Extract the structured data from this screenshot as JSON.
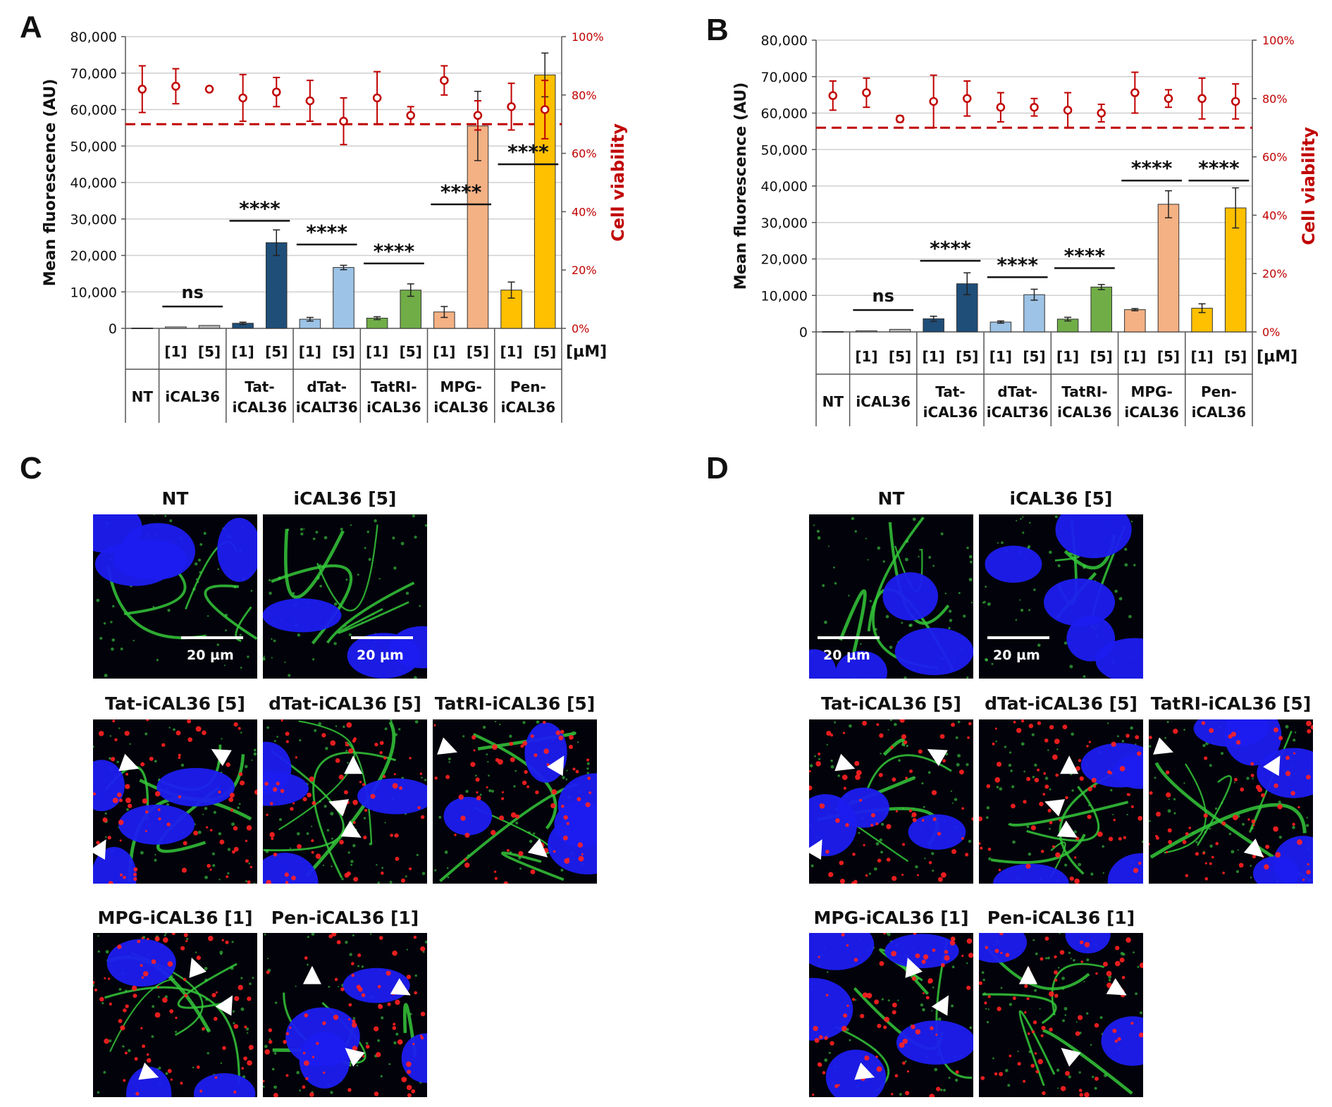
{
  "panels": {
    "A": "A",
    "B": "B",
    "C": "C",
    "D": "D"
  },
  "colors": {
    "NT": "#7f7f7f",
    "iCAL36": "#b7b7b7",
    "Tat": "#1f4e79",
    "dTat": "#9dc3e6",
    "TatRI": "#70ad47",
    "MPG": "#f4b183",
    "Pen": "#ffc000",
    "viability": "#c00000"
  },
  "chart_data": [
    {
      "type": "bar",
      "panel": "A",
      "ylabel": "Mean fluorescence (AU)",
      "y2label": "Cell viability",
      "ylim": [
        0,
        80000
      ],
      "yticks": [
        "0",
        "10,000",
        "20,000",
        "30,000",
        "40,000",
        "50,000",
        "60,000",
        "70,000",
        "80,000"
      ],
      "y2lim": [
        0,
        100
      ],
      "y2ticks": [
        "0%",
        "20%",
        "40%",
        "60%",
        "80%",
        "100%"
      ],
      "unit_label": "[µM]",
      "threshold_pct": 70,
      "groups": [
        {
          "name": "NT",
          "lines": [
            "NT"
          ],
          "bars": [
            {
              "conc": "",
              "value": 100,
              "err": 0,
              "via": 82,
              "via_err": 8,
              "color": "NT"
            }
          ]
        },
        {
          "name": "iCAL36",
          "lines": [
            "iCAL36"
          ],
          "bars": [
            {
              "conc": "[1]",
              "value": 400,
              "err": 0,
              "via": 83,
              "via_err": 6,
              "color": "iCAL36"
            },
            {
              "conc": "[5]",
              "value": 800,
              "err": 0,
              "via": 82,
              "via_err": 0,
              "color": "iCAL36"
            }
          ]
        },
        {
          "name": "Tat-iCAL36",
          "lines": [
            "Tat-",
            "iCAL36"
          ],
          "bars": [
            {
              "conc": "[1]",
              "value": 1400,
              "err": 300,
              "via": 79,
              "via_err": 8,
              "color": "Tat"
            },
            {
              "conc": "[5]",
              "value": 23500,
              "err": 3500,
              "via": 81,
              "via_err": 5,
              "color": "Tat"
            }
          ]
        },
        {
          "name": "dTat-iCALT36",
          "lines": [
            "dTat-",
            "iCALT36"
          ],
          "bars": [
            {
              "conc": "[1]",
              "value": 2500,
              "err": 500,
              "via": 78,
              "via_err": 7,
              "color": "dTat"
            },
            {
              "conc": "[5]",
              "value": 16700,
              "err": 600,
              "via": 71,
              "via_err": 8,
              "color": "dTat"
            }
          ]
        },
        {
          "name": "TatRI-iCAL36",
          "lines": [
            "TatRI-",
            "iCAL36"
          ],
          "bars": [
            {
              "conc": "[1]",
              "value": 2800,
              "err": 400,
              "via": 79,
              "via_err": 9,
              "color": "TatRI"
            },
            {
              "conc": "[5]",
              "value": 10500,
              "err": 1700,
              "via": 73,
              "via_err": 3,
              "color": "TatRI"
            }
          ]
        },
        {
          "name": "MPG-iCAL36",
          "lines": [
            "MPG-",
            "iCAL36"
          ],
          "bars": [
            {
              "conc": "[1]",
              "value": 4500,
              "err": 1500,
              "via": 85,
              "via_err": 5,
              "color": "MPG"
            },
            {
              "conc": "[5]",
              "value": 55500,
              "err": 9500,
              "via": 73,
              "via_err": 5,
              "color": "MPG"
            }
          ]
        },
        {
          "name": "Pen-iCAL36",
          "lines": [
            "Pen-",
            "iCAL36"
          ],
          "bars": [
            {
              "conc": "[1]",
              "value": 10500,
              "err": 2200,
              "via": 76,
              "via_err": 8,
              "color": "Pen"
            },
            {
              "conc": "[5]",
              "value": 69500,
              "err": 6000,
              "via": 75,
              "via_err": 10,
              "color": "Pen"
            }
          ]
        }
      ],
      "significance": [
        {
          "group": 1,
          "label": "ns",
          "y": 6000
        },
        {
          "group": 2,
          "label": "****",
          "y": 29500
        },
        {
          "group": 3,
          "label": "****",
          "y": 23000
        },
        {
          "group": 4,
          "label": "****",
          "y": 17800
        },
        {
          "group": 5,
          "label": "****",
          "y": 34000
        },
        {
          "group": 6,
          "label": "****",
          "y": 45000
        }
      ]
    },
    {
      "type": "bar",
      "panel": "B",
      "ylabel": "Mean fluorescence (AU)",
      "y2label": "Cell viability",
      "ylim": [
        0,
        80000
      ],
      "yticks": [
        "0",
        "10,000",
        "20,000",
        "30,000",
        "40,000",
        "50,000",
        "60,000",
        "70,000",
        "80,000"
      ],
      "y2lim": [
        0,
        100
      ],
      "y2ticks": [
        "0%",
        "20%",
        "40%",
        "60%",
        "80%",
        "100%"
      ],
      "unit_label": "[µM]",
      "threshold_pct": 70,
      "groups": [
        {
          "name": "NT",
          "lines": [
            "NT"
          ],
          "bars": [
            {
              "conc": "",
              "value": 100,
              "err": 0,
              "via": 81,
              "via_err": 5,
              "color": "NT"
            }
          ]
        },
        {
          "name": "iCAL36",
          "lines": [
            "iCAL36"
          ],
          "bars": [
            {
              "conc": "[1]",
              "value": 300,
              "err": 0,
              "via": 82,
              "via_err": 5,
              "color": "iCAL36"
            },
            {
              "conc": "[5]",
              "value": 700,
              "err": 0,
              "via": 73,
              "via_err": 1,
              "color": "iCAL36"
            }
          ]
        },
        {
          "name": "Tat-iCAL36",
          "lines": [
            "Tat-",
            "iCAL36"
          ],
          "bars": [
            {
              "conc": "[1]",
              "value": 3600,
              "err": 700,
              "via": 79,
              "via_err": 9,
              "color": "Tat"
            },
            {
              "conc": "[5]",
              "value": 13200,
              "err": 3000,
              "via": 80,
              "via_err": 6,
              "color": "Tat"
            }
          ]
        },
        {
          "name": "dTat-iCALT36",
          "lines": [
            "dTat-",
            "iCALT36"
          ],
          "bars": [
            {
              "conc": "[1]",
              "value": 2700,
              "err": 300,
              "via": 77,
              "via_err": 5,
              "color": "dTat"
            },
            {
              "conc": "[5]",
              "value": 10200,
              "err": 1500,
              "via": 77,
              "via_err": 3,
              "color": "dTat"
            }
          ]
        },
        {
          "name": "TatRI-iCAL36",
          "lines": [
            "TatRI-",
            "iCAL36"
          ],
          "bars": [
            {
              "conc": "[1]",
              "value": 3500,
              "err": 500,
              "via": 76,
              "via_err": 6,
              "color": "TatRI"
            },
            {
              "conc": "[5]",
              "value": 12300,
              "err": 700,
              "via": 75,
              "via_err": 3,
              "color": "TatRI"
            }
          ]
        },
        {
          "name": "MPG-iCAL36",
          "lines": [
            "MPG-",
            "iCAL36"
          ],
          "bars": [
            {
              "conc": "[1]",
              "value": 6100,
              "err": 300,
              "via": 82,
              "via_err": 7,
              "color": "MPG"
            },
            {
              "conc": "[5]",
              "value": 35000,
              "err": 3700,
              "via": 80,
              "via_err": 3,
              "color": "MPG"
            }
          ]
        },
        {
          "name": "Pen-iCAL36",
          "lines": [
            "Pen-",
            "iCAL36"
          ],
          "bars": [
            {
              "conc": "[1]",
              "value": 6500,
              "err": 1200,
              "via": 80,
              "via_err": 7,
              "color": "Pen"
            },
            {
              "conc": "[5]",
              "value": 34000,
              "err": 5500,
              "via": 79,
              "via_err": 6,
              "color": "Pen"
            }
          ]
        }
      ],
      "significance": [
        {
          "group": 1,
          "label": "ns",
          "y": 6000
        },
        {
          "group": 2,
          "label": "****",
          "y": 19500
        },
        {
          "group": 3,
          "label": "****",
          "y": 15000
        },
        {
          "group": 4,
          "label": "****",
          "y": 17500
        },
        {
          "group": 5,
          "label": "****",
          "y": 41500
        },
        {
          "group": 6,
          "label": "****",
          "y": 41500
        }
      ]
    }
  ],
  "micrographs": {
    "C": {
      "titles": [
        "NT",
        "iCAL36 [5]",
        "Tat-iCAL36 [5]",
        "dTat-iCAL36 [5]",
        "TatRI-iCAL36 [5]",
        "MPG-iCAL36 [1]",
        "Pen-iCAL36 [1]"
      ],
      "scale_label": "20 µm"
    },
    "D": {
      "titles": [
        "NT",
        "iCAL36 [5]",
        "Tat-iCAL36 [5]",
        "dTat-iCAL36 [5]",
        "TatRI-iCAL36 [5]",
        "MPG-iCAL36 [1]",
        "Pen-iCAL36 [1]"
      ],
      "scale_label": "20 µm"
    }
  }
}
